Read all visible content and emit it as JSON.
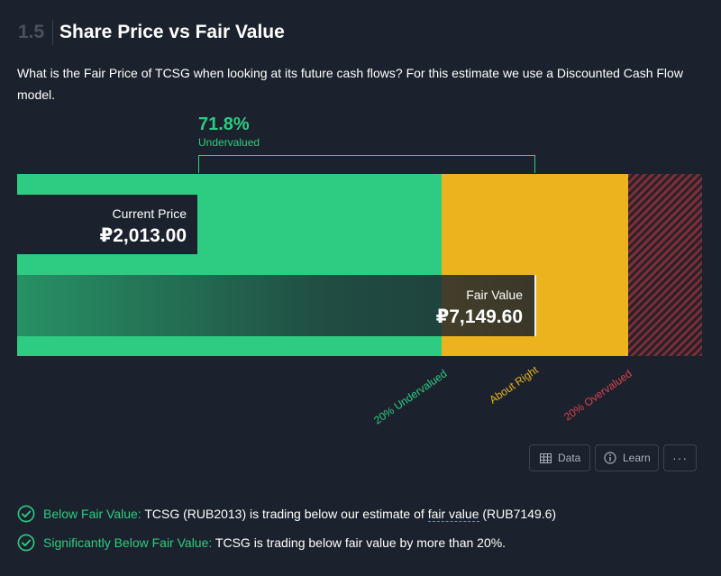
{
  "section": {
    "number": "1.5",
    "title": "Share Price vs Fair Value",
    "description": "What is the Fair Price of TCSG when looking at its future cash flows? For this estimate we use a Discounted Cash Flow model."
  },
  "valuation": {
    "percent": "71.8%",
    "percent_label": "Undervalued",
    "current_price_label": "Current Price",
    "current_price": "₽2,013.00",
    "current_price_value": 2013.0,
    "fair_value_label": "Fair Value",
    "fair_value": "₽7,149.60",
    "fair_value_value": 7149.6,
    "zones": [
      "20% Undervalued",
      "About Right",
      "20% Overvalued"
    ]
  },
  "colors": {
    "undervalued": "#2ecc82",
    "about_right": "#ebb31d",
    "overvalued": "#d9434f",
    "background": "#1b222d"
  },
  "actions": {
    "data_label": "Data",
    "learn_label": "Learn",
    "more_label": "···"
  },
  "checks": [
    {
      "title": "Below Fair Value:",
      "text_before": " TCSG (RUB2013) is trading below our estimate of ",
      "link": "fair value",
      "text_after": " (RUB7149.6)",
      "icon": "check-circle-icon"
    },
    {
      "title": "Significantly Below Fair Value:",
      "text": " TCSG is trading below fair value by more than 20%.",
      "icon": "check-circle-icon"
    }
  ]
}
